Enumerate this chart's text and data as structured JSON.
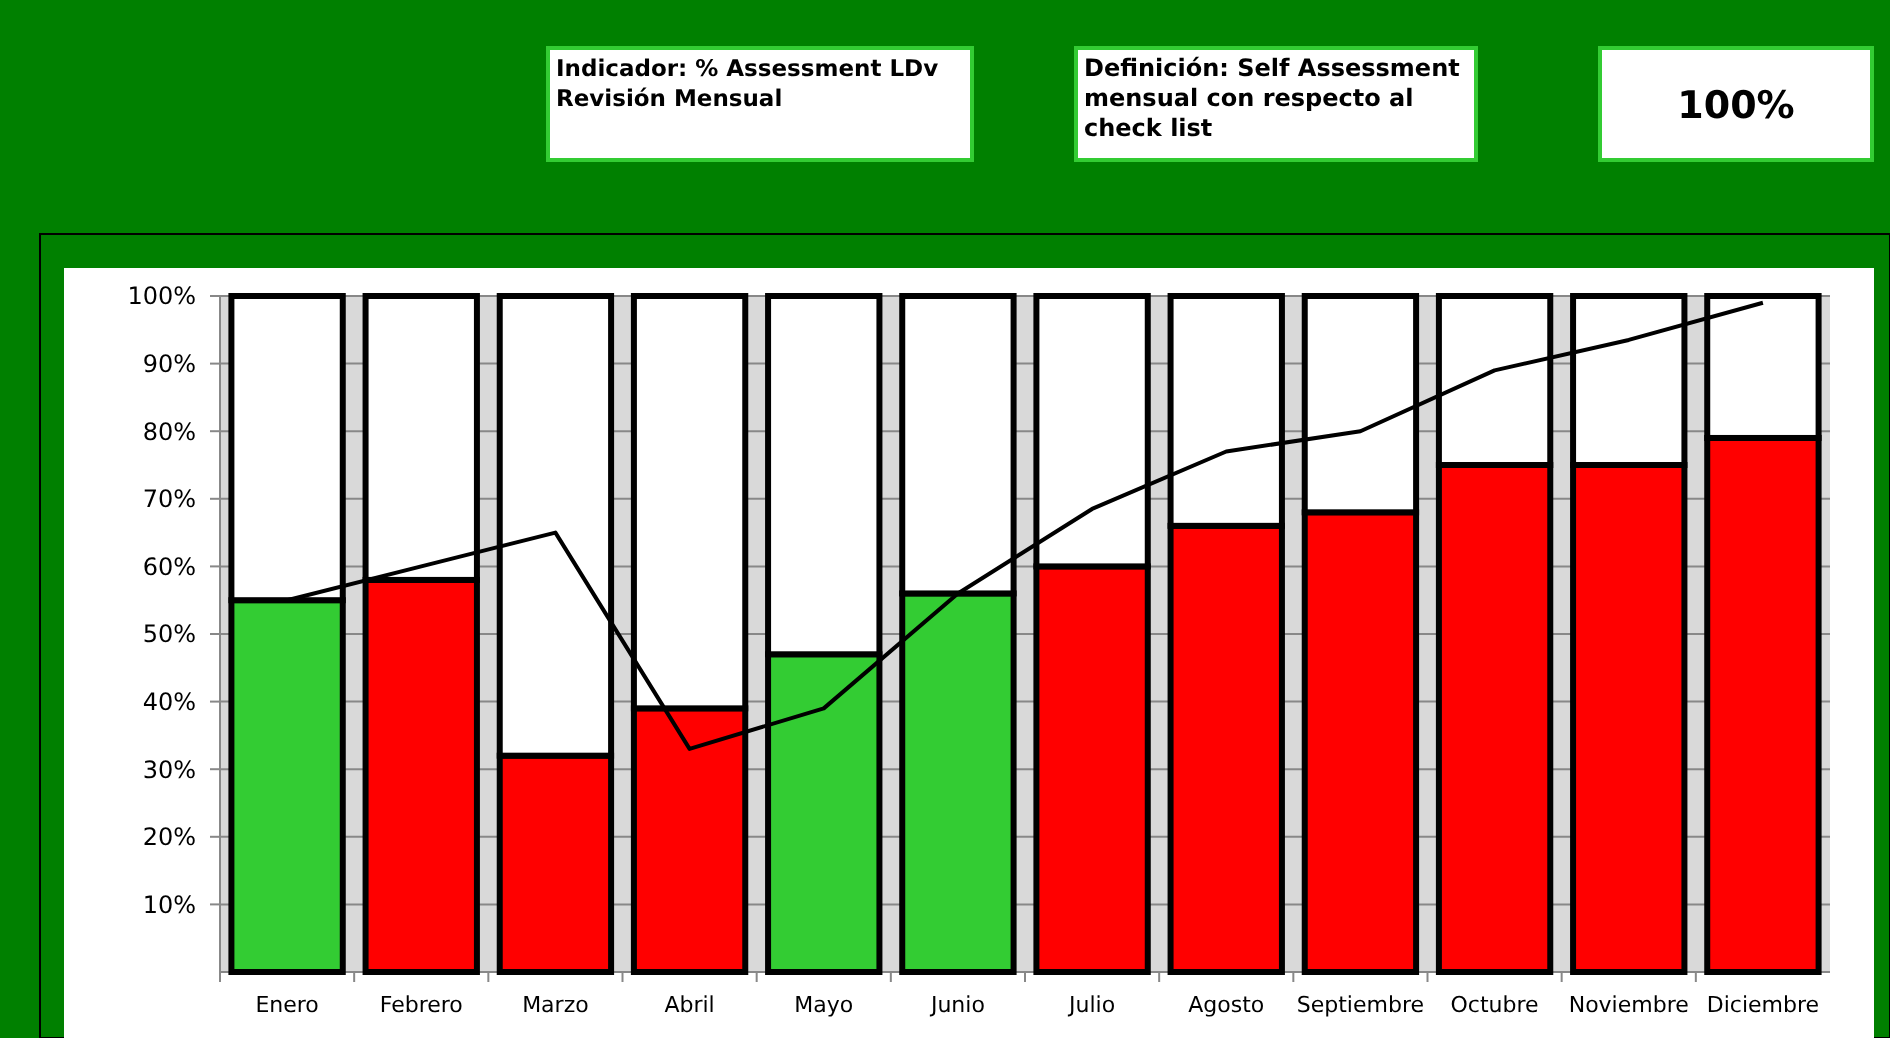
{
  "chart_data": {
    "type": "bar",
    "stacked": true,
    "annotations": [
      "Indicador: % Assessment LDv Revisión Mensual",
      "Definición: Self Assessment mensual con respecto al check list",
      "100%"
    ],
    "categories": [
      "Enero",
      "Febrero",
      "Marzo",
      "Abril",
      "Mayo",
      "Junio",
      "Julio",
      "Agosto",
      "Septiembre",
      "Octubre",
      "Noviembre",
      "Diciembre"
    ],
    "series": [
      {
        "colors": [
          "#33cc33",
          "#ff0000",
          "#ff0000",
          "#ff0000",
          "#33cc33",
          "#33cc33",
          "#ff0000",
          "#ff0000",
          "#ff0000",
          "#ff0000",
          "#ff0000",
          "#ff0000"
        ],
        "values": [
          55,
          58,
          32,
          39,
          47,
          56,
          60,
          66,
          68,
          75,
          75,
          79
        ]
      },
      {
        "color": "#ffffff",
        "values": [
          45,
          42,
          68,
          61,
          53,
          44,
          40,
          34,
          32,
          25,
          25,
          21
        ]
      },
      {
        "type": "line",
        "color": "#000000",
        "values": [
          55,
          60,
          65,
          33,
          39,
          56,
          68.5,
          77,
          80,
          89,
          93.5,
          99
        ]
      }
    ],
    "ylim": [
      0,
      100
    ],
    "yticks": [
      {
        "value": 10,
        "label": "10%"
      },
      {
        "value": 20,
        "label": "20%"
      },
      {
        "value": 30,
        "label": "30%"
      },
      {
        "value": 40,
        "label": "40%"
      },
      {
        "value": 50,
        "label": "50%"
      },
      {
        "value": 60,
        "label": "60%"
      },
      {
        "value": 70,
        "label": "70%"
      },
      {
        "value": 80,
        "label": "80%"
      },
      {
        "value": 90,
        "label": "90%"
      },
      {
        "value": 100,
        "label": "100%"
      }
    ],
    "grid": "y",
    "marker": "none",
    "line_style": "solid"
  }
}
